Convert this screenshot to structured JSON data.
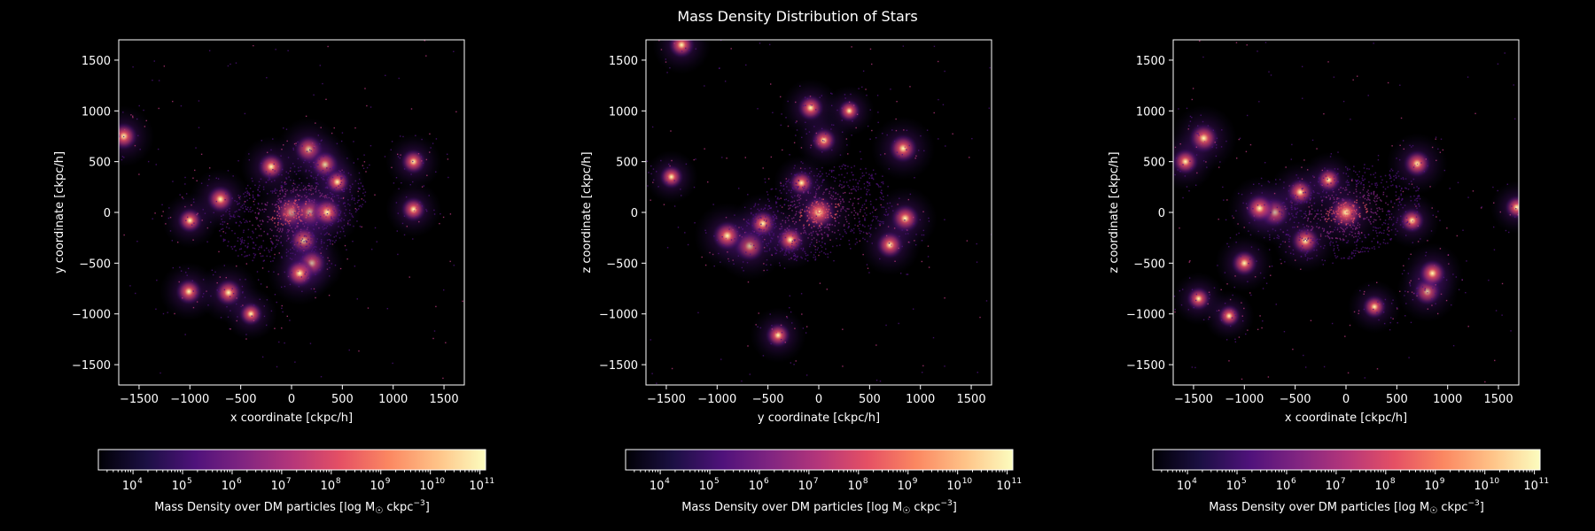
{
  "title": "Mass Density Distribution of Stars",
  "colorbar": {
    "label": "Mass Density over DM particles [log M☉ ckpc⁻³]",
    "label_prefix": "Mass Density over DM particles [log M",
    "label_sun": "☉",
    "label_unit": " ckpc",
    "label_exp": "−3",
    "label_close": "]",
    "scale": "log",
    "range": [
      2000,
      130000000000
    ],
    "ticks": [
      4,
      5,
      6,
      7,
      8,
      9,
      10,
      11
    ],
    "tick_base": "10",
    "colormap": "magma",
    "colors": [
      "#000004",
      "#1c1044",
      "#4f127b",
      "#812581",
      "#b5367a",
      "#e55064",
      "#fb8761",
      "#fec287",
      "#fcfdbf"
    ]
  },
  "chart_data": [
    {
      "type": "heatmap",
      "projection": "x-y",
      "xlabel": "x coordinate [ckpc/h]",
      "ylabel": "y coordinate [ckpc/h]",
      "xlim": [
        -1700,
        1700
      ],
      "ylim": [
        -1700,
        1700
      ],
      "xticks": [
        -1500,
        -1000,
        -500,
        0,
        500,
        1000,
        1500
      ],
      "yticks": [
        -1500,
        -1000,
        -500,
        0,
        500,
        1000,
        1500
      ],
      "grid": false,
      "clumps": [
        {
          "x": 0,
          "y": 0,
          "level": 0.95
        },
        {
          "x": 180,
          "y": 0,
          "level": 0.85
        },
        {
          "x": 350,
          "y": 0,
          "level": 0.8
        },
        {
          "x": 170,
          "y": 620,
          "level": 0.75
        },
        {
          "x": 330,
          "y": 470,
          "level": 0.7
        },
        {
          "x": -200,
          "y": 450,
          "level": 0.7
        },
        {
          "x": -700,
          "y": 130,
          "level": 0.7
        },
        {
          "x": 120,
          "y": -280,
          "level": 0.75
        },
        {
          "x": 200,
          "y": -500,
          "level": 0.75
        },
        {
          "x": 80,
          "y": -600,
          "level": 0.75
        },
        {
          "x": -620,
          "y": -790,
          "level": 0.7
        },
        {
          "x": -1010,
          "y": -780,
          "level": 0.65
        },
        {
          "x": -1000,
          "y": -80,
          "level": 0.6
        },
        {
          "x": -1650,
          "y": 750,
          "level": 0.7
        },
        {
          "x": 1200,
          "y": 500,
          "level": 0.6
        },
        {
          "x": 1200,
          "y": 30,
          "level": 0.6
        },
        {
          "x": -400,
          "y": -1000,
          "level": 0.55
        },
        {
          "x": 450,
          "y": 300,
          "level": 0.6
        }
      ]
    },
    {
      "type": "heatmap",
      "projection": "y-z",
      "xlabel": "y coordinate [ckpc/h]",
      "ylabel": "z coordinate [ckpc/h]",
      "xlim": [
        -1700,
        1700
      ],
      "ylim": [
        -1700,
        1700
      ],
      "xticks": [
        -1500,
        -1000,
        -500,
        0,
        500,
        1000,
        1500
      ],
      "yticks": [
        -1500,
        -1000,
        -500,
        0,
        500,
        1000,
        1500
      ],
      "grid": false,
      "clumps": [
        {
          "x": 0,
          "y": 0,
          "level": 0.95
        },
        {
          "x": -680,
          "y": -330,
          "level": 0.85
        },
        {
          "x": -900,
          "y": -230,
          "level": 0.8
        },
        {
          "x": -550,
          "y": -110,
          "level": 0.7
        },
        {
          "x": -280,
          "y": -270,
          "level": 0.7
        },
        {
          "x": 830,
          "y": 630,
          "level": 0.75
        },
        {
          "x": 850,
          "y": -60,
          "level": 0.75
        },
        {
          "x": 700,
          "y": -320,
          "level": 0.7
        },
        {
          "x": -80,
          "y": 1030,
          "level": 0.65
        },
        {
          "x": 50,
          "y": 710,
          "level": 0.6
        },
        {
          "x": -400,
          "y": -1210,
          "level": 0.6
        },
        {
          "x": -1350,
          "y": 1650,
          "level": 0.65
        },
        {
          "x": -1450,
          "y": 350,
          "level": 0.55
        },
        {
          "x": -170,
          "y": 290,
          "level": 0.6
        },
        {
          "x": 300,
          "y": 1000,
          "level": 0.5
        }
      ]
    },
    {
      "type": "heatmap",
      "projection": "x-z",
      "xlabel": "x coordinate [ckpc/h]",
      "ylabel": "z coordinate [ckpc/h]",
      "xlim": [
        -1700,
        1700
      ],
      "ylim": [
        -1700,
        1700
      ],
      "xticks": [
        -1500,
        -1000,
        -500,
        0,
        500,
        1000,
        1500
      ],
      "yticks": [
        -1500,
        -1000,
        -500,
        0,
        500,
        1000,
        1500
      ],
      "grid": false,
      "clumps": [
        {
          "x": 0,
          "y": 0,
          "level": 0.95
        },
        {
          "x": -700,
          "y": 0,
          "level": 0.8
        },
        {
          "x": -850,
          "y": 40,
          "level": 0.75
        },
        {
          "x": -450,
          "y": 200,
          "level": 0.7
        },
        {
          "x": -400,
          "y": -280,
          "level": 0.75
        },
        {
          "x": -1400,
          "y": 730,
          "level": 0.8
        },
        {
          "x": -1580,
          "y": 500,
          "level": 0.65
        },
        {
          "x": 700,
          "y": 480,
          "level": 0.7
        },
        {
          "x": 800,
          "y": -780,
          "level": 0.7
        },
        {
          "x": 850,
          "y": -600,
          "level": 0.7
        },
        {
          "x": -1000,
          "y": -500,
          "level": 0.65
        },
        {
          "x": -1450,
          "y": -850,
          "level": 0.55
        },
        {
          "x": -1150,
          "y": -1020,
          "level": 0.5
        },
        {
          "x": 280,
          "y": -930,
          "level": 0.55
        },
        {
          "x": 650,
          "y": -80,
          "level": 0.6
        },
        {
          "x": 1680,
          "y": 50,
          "level": 0.55
        },
        {
          "x": -170,
          "y": 320,
          "level": 0.6
        }
      ]
    }
  ]
}
